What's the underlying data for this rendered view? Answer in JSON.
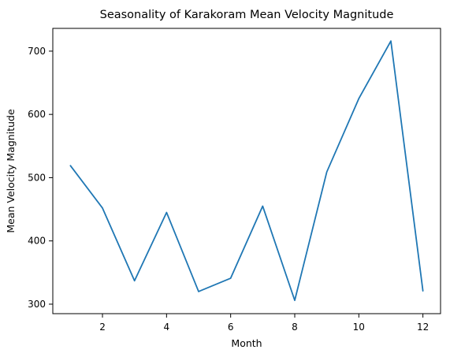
{
  "chart_data": {
    "type": "line",
    "title": "Seasonality of Karakoram Mean Velocity Magnitude",
    "xlabel": "Month",
    "ylabel": "Mean Velocity Magnitude",
    "x": [
      1,
      2,
      3,
      4,
      5,
      6,
      7,
      8,
      9,
      10,
      11,
      12
    ],
    "series": [
      {
        "values": [
          519,
          452,
          337,
          445,
          320,
          341,
          455,
          306,
          509,
          625,
          716,
          321
        ],
        "color": "#1f77b4"
      }
    ],
    "xlim": [
      0.45,
      12.55
    ],
    "ylim": [
      285,
      736
    ],
    "xticks": [
      2,
      4,
      6,
      8,
      10,
      12
    ],
    "yticks": [
      300,
      400,
      500,
      600,
      700
    ],
    "grid": false,
    "legend": "none"
  }
}
